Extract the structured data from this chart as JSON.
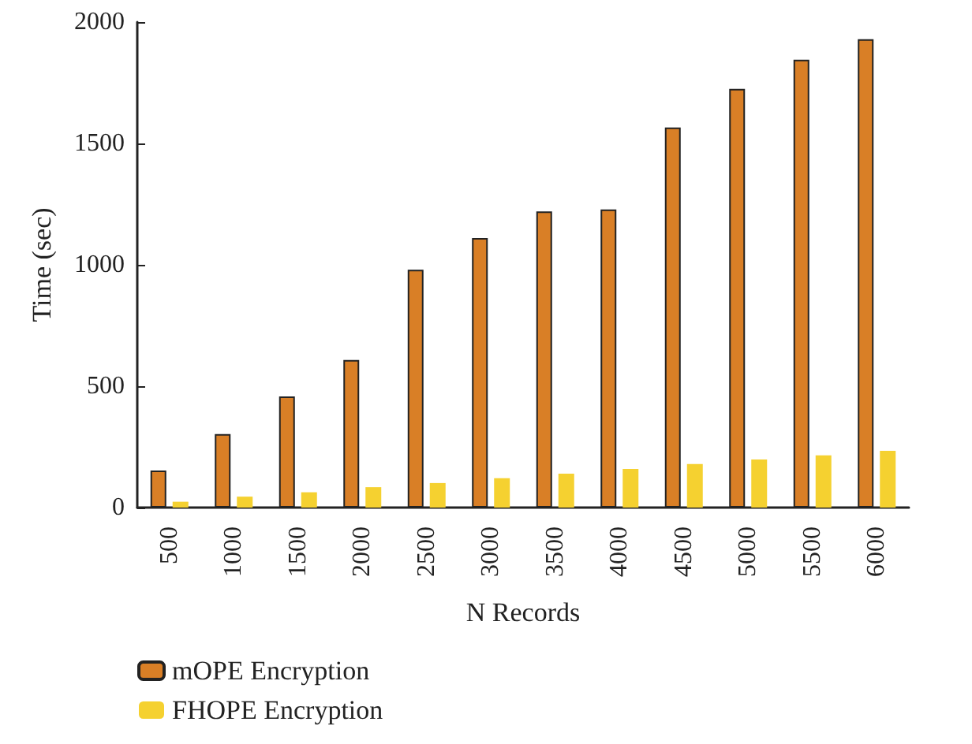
{
  "chart_data": {
    "type": "bar",
    "xlabel": "N Records",
    "ylabel": "Time (sec)",
    "categories": [
      "500",
      "1000",
      "1500",
      "2000",
      "2500",
      "3000",
      "3500",
      "4000",
      "4500",
      "5000",
      "5500",
      "6000"
    ],
    "series": [
      {
        "name": "mOPE Encryption",
        "color": "#d97f26",
        "values": [
          153,
          303,
          458,
          608,
          980,
          1110,
          1220,
          1228,
          1566,
          1725,
          1845,
          1929
        ]
      },
      {
        "name": "FHOPE Encryption",
        "color": "#f5d130",
        "values": [
          24,
          45,
          63,
          84,
          101,
          121,
          140,
          159,
          179,
          198,
          215,
          234
        ]
      }
    ],
    "ylim": [
      0,
      2000
    ],
    "yticks": [
      0,
      500,
      1000,
      1500,
      2000
    ],
    "grid": false,
    "legend": "bottom left"
  }
}
